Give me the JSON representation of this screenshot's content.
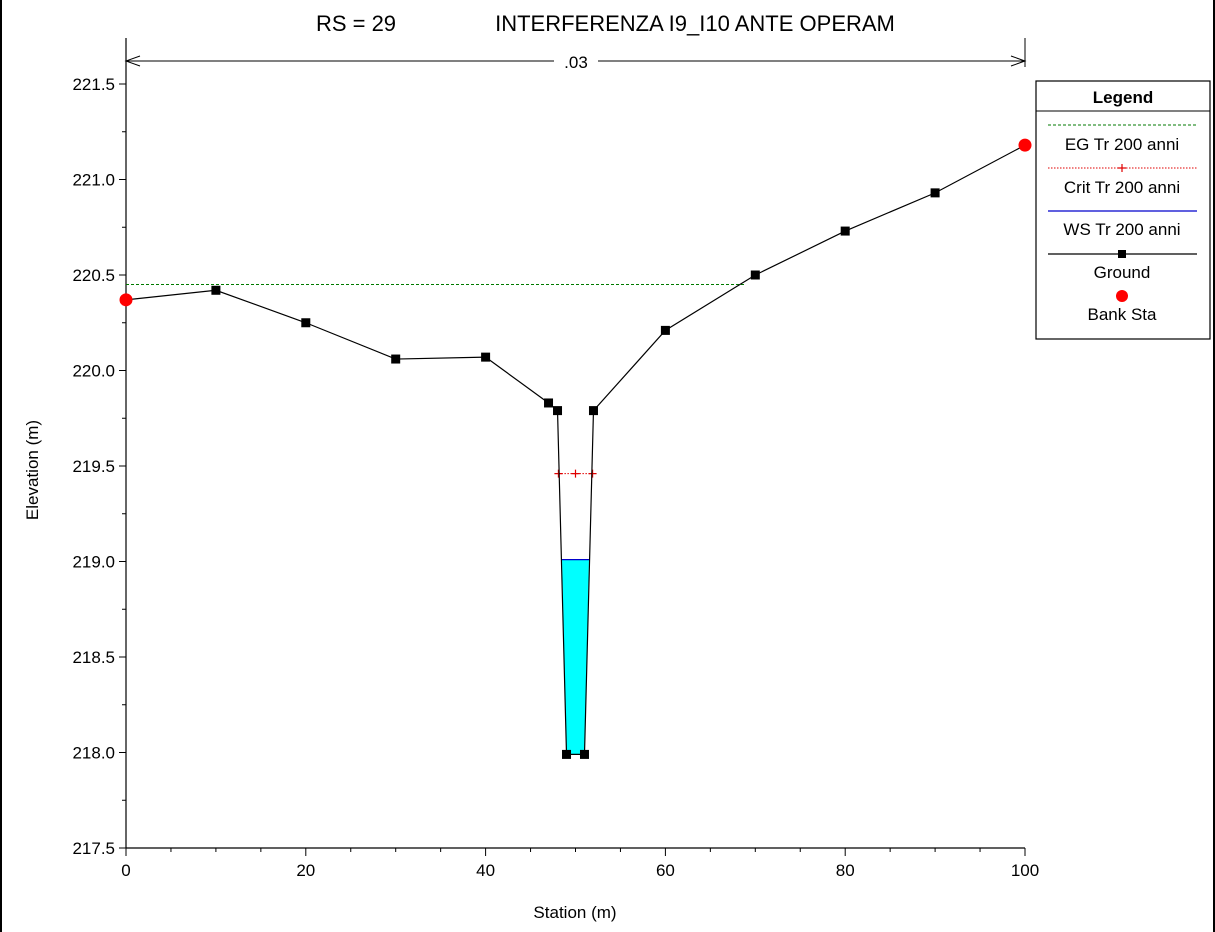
{
  "chart_data": {
    "type": "line",
    "title_rs": "RS = 29",
    "title_name": "INTERFERENZA I9_I10 ANTE OPERAM",
    "xlabel": "Station (m)",
    "ylabel": "Elevation (m)",
    "xlim": [
      0,
      100
    ],
    "ylim": [
      217.5,
      221.7
    ],
    "x_ticks": [
      0,
      20,
      40,
      60,
      80,
      100
    ],
    "x_tick_labels": [
      "0",
      "20",
      "40",
      "60",
      "80",
      "100"
    ],
    "y_ticks": [
      217.5,
      218.0,
      218.5,
      219.0,
      219.5,
      220.0,
      220.5,
      221.0,
      221.5
    ],
    "y_tick_labels": [
      "217.5",
      "218.0",
      "218.5",
      "219.0",
      "219.5",
      "220.0",
      "220.5",
      "221.0",
      "221.5"
    ],
    "manning_label": ".03",
    "ground": {
      "name": "Ground",
      "x": [
        0,
        10,
        20,
        30,
        40,
        47,
        48,
        49,
        51,
        52,
        60,
        70,
        80,
        90,
        100
      ],
      "y": [
        220.37,
        220.42,
        220.25,
        220.06,
        220.07,
        219.83,
        219.79,
        217.99,
        217.99,
        219.79,
        220.21,
        220.5,
        220.73,
        220.93,
        221.18
      ]
    },
    "eg": {
      "name": "EG Tr 200 anni",
      "y": 220.45,
      "x": [
        0,
        68.8
      ]
    },
    "crit": {
      "name": "Crit Tr 200 anni",
      "y": 219.46,
      "x": [
        48.1,
        50,
        51.9
      ]
    },
    "ws": {
      "name": "WS Tr 200 anni",
      "y": 219.01,
      "x": [
        48.5,
        51.5
      ]
    },
    "bank_sta": {
      "name": "Bank Sta",
      "x": [
        0,
        100
      ],
      "y": [
        220.37,
        221.18
      ]
    },
    "legend": {
      "title": "Legend",
      "entries": [
        "EG Tr 200 anni",
        "Crit Tr 200 anni",
        "WS Tr 200 anni",
        "Ground",
        "Bank Sta"
      ]
    },
    "colors": {
      "eg": "#007a00",
      "crit": "#e00000",
      "ws": "#0000cc",
      "water_fill": "#00ffff",
      "ground": "#000000",
      "bank": "#ff0000"
    }
  }
}
